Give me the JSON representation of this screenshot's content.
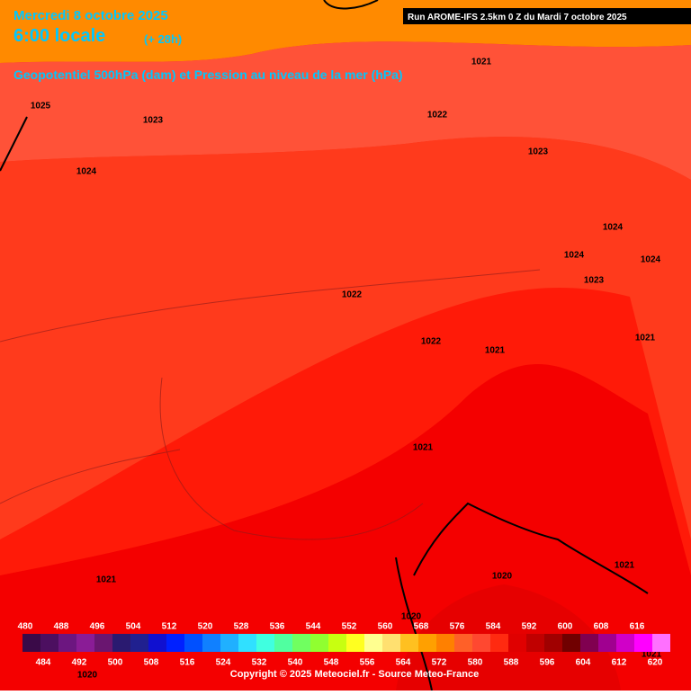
{
  "header": {
    "date": "Mercredi 8 octobre 2025",
    "time": "6:00 locale",
    "lead": "(+ 28h)",
    "subtitle": "Geopotentiel 500hPa (dam) et Pression au niveau de la mer (hPa)",
    "run": "Run AROME-IFS 2.5km 0 Z du Mardi 7 octobre 2025"
  },
  "isobar_labels": [
    "1021",
    "1025",
    "1023",
    "1022",
    "1024",
    "1023",
    "1024",
    "1024",
    "1024",
    "1023",
    "1022",
    "1022",
    "1021",
    "1021",
    "1021",
    "1021",
    "1020",
    "1021",
    "1020",
    "1020",
    "1021"
  ],
  "scale": {
    "values": [
      480,
      484,
      488,
      492,
      496,
      500,
      504,
      508,
      512,
      516,
      520,
      524,
      528,
      532,
      536,
      540,
      544,
      548,
      552,
      556,
      560,
      564,
      568,
      572,
      576,
      580,
      584,
      588,
      592,
      596,
      600,
      604,
      608,
      612,
      616,
      620
    ],
    "colors": [
      "#3a0a48",
      "#4c0f60",
      "#6c1680",
      "#8a1c96",
      "#6a1670",
      "#2a1a70",
      "#20208f",
      "#1010d0",
      "#0020ff",
      "#0050ff",
      "#1080ff",
      "#20b0ff",
      "#30e0ff",
      "#40ffe0",
      "#50ffa0",
      "#70ff60",
      "#90ff30",
      "#c8ff10",
      "#ffff20",
      "#ffff90",
      "#ffe070",
      "#ffc020",
      "#ffa000",
      "#ff8000",
      "#ff6028",
      "#ff4830",
      "#ff2a10",
      "#e00000",
      "#c00000",
      "#a00000",
      "#700000",
      "#800050",
      "#a00090",
      "#d000c8",
      "#ff00ff",
      "#ff70ff"
    ]
  },
  "footer": {
    "copyright": "Copyright © 2025 Meteociel.fr - Source Meteo-France"
  }
}
